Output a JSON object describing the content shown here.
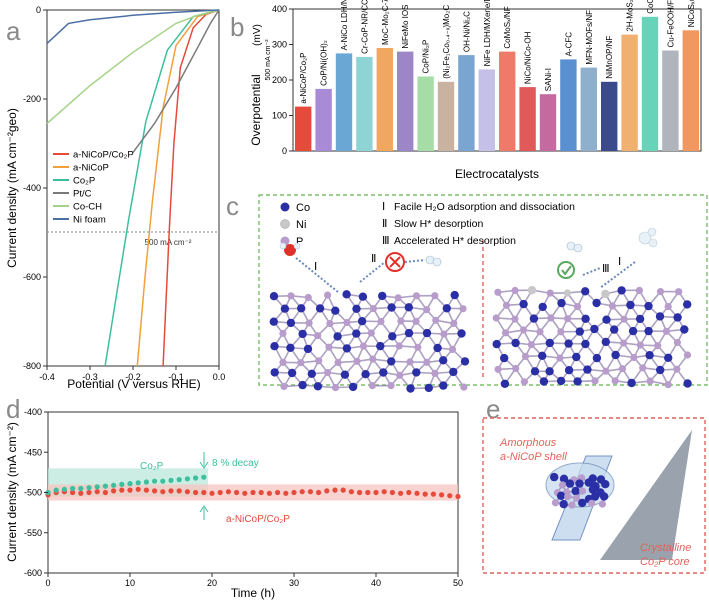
{
  "panel_labels": [
    "a",
    "b",
    "c",
    "d",
    "e"
  ],
  "colors": {
    "a_nicop_co2p": "#e64a3b",
    "a_nicop": "#f2a03d",
    "co2p": "#3dbf9e",
    "ptc": "#7a7a7a",
    "co_ch": "#a6d38a",
    "ni_foam": "#4a6fa5",
    "panel_c_border": "#7ac06a",
    "panel_e_border": "#e2625a"
  },
  "panel_c": {
    "legend": [
      "Co",
      "Ni",
      "P"
    ],
    "steps": [
      "Facile H₂O adsorption and dissociation",
      "Slow H* desorption",
      "Accelerated H* desorption"
    ],
    "step_numerals": [
      "Ⅰ",
      "Ⅱ",
      "Ⅲ"
    ]
  },
  "panel_e": {
    "shell_label": [
      "Amorphous",
      "a-NiCoP shell"
    ],
    "core_label": [
      "Crystalline",
      "Co₂P core"
    ]
  },
  "chart_data": [
    {
      "panel": "a",
      "type": "line",
      "xlabel": "Potential (V versus RHE)",
      "ylabel": "Current density (mA cm⁻²geo)",
      "xlim": [
        -0.4,
        0.0
      ],
      "ylim": [
        -800,
        0
      ],
      "xticks": [
        "-0.4",
        "-0.3",
        "-0.2",
        "-0.1",
        "0.0"
      ],
      "yticks": [
        "0",
        "-200",
        "-400",
        "-600",
        "-800"
      ],
      "reference_line": {
        "y": -500,
        "label": "500 mA cm⁻²"
      },
      "series": [
        {
          "name": "a-NiCoP/Co₂P",
          "key": "a_nicop_co2p",
          "points": [
            [
              0,
              0
            ],
            [
              -0.03,
              -10
            ],
            [
              -0.06,
              -40
            ],
            [
              -0.09,
              -130
            ],
            [
              -0.105,
              -300
            ],
            [
              -0.115,
              -480
            ],
            [
              -0.123,
              -650
            ],
            [
              -0.13,
              -800
            ]
          ]
        },
        {
          "name": "a-NiCoP",
          "key": "a_nicop",
          "points": [
            [
              0,
              0
            ],
            [
              -0.05,
              -15
            ],
            [
              -0.1,
              -80
            ],
            [
              -0.13,
              -220
            ],
            [
              -0.155,
              -430
            ],
            [
              -0.172,
              -600
            ],
            [
              -0.19,
              -800
            ]
          ]
        },
        {
          "name": "Co₂P",
          "key": "co2p",
          "points": [
            [
              0,
              0
            ],
            [
              -0.06,
              -15
            ],
            [
              -0.12,
              -90
            ],
            [
              -0.17,
              -250
            ],
            [
              -0.21,
              -470
            ],
            [
              -0.24,
              -650
            ],
            [
              -0.265,
              -800
            ]
          ]
        },
        {
          "name": "Pt/C",
          "key": "ptc",
          "points": [
            [
              0,
              0
            ],
            [
              -0.02,
              -30
            ],
            [
              -0.05,
              -85
            ],
            [
              -0.1,
              -175
            ],
            [
              -0.15,
              -255
            ],
            [
              -0.2,
              -320
            ]
          ]
        },
        {
          "name": "Co-CH",
          "key": "co_ch",
          "points": [
            [
              0,
              0
            ],
            [
              -0.05,
              -12
            ],
            [
              -0.1,
              -30
            ],
            [
              -0.2,
              -95
            ],
            [
              -0.3,
              -170
            ],
            [
              -0.4,
              -255
            ]
          ]
        },
        {
          "name": "Ni foam",
          "key": "ni_foam",
          "points": [
            [
              0,
              0
            ],
            [
              -0.1,
              -5
            ],
            [
              -0.2,
              -12
            ],
            [
              -0.3,
              -22
            ],
            [
              -0.35,
              -30
            ],
            [
              -0.4,
              -75
            ]
          ]
        }
      ]
    },
    {
      "panel": "b",
      "type": "bar",
      "xlabel": "Electrocatalysts",
      "ylabel": "Overpotential",
      "ylabel_unit": "(mV)",
      "ylabel_sub": "500 mA cm⁻²",
      "ylim": [
        0,
        400
      ],
      "yticks": [
        "0",
        "100",
        "200",
        "300",
        "400"
      ],
      "categories": [
        "a-NiCoP/Co₂P",
        "CoP/Ni(OH)₂",
        "A-NiCo LDH/NF",
        "Cr-CoP-NR/CC",
        "MoC-Mo₂C-790",
        "NiFeMo IOS",
        "CoP/Ni₂P",
        "(Ni₂Fe₁Co₀.₄₋ₓ)Mo₂C",
        "OH-Ni/Ni₃C",
        "NiFe LDH/MXene/NF",
        "CoMoSₓ/NF",
        "NiCo/NiCo-OH",
        "SANi-I",
        "A-CFC",
        "MFN-MOFs/NF",
        "NiMnOP/NF",
        "2H-MoS₂",
        "CoOₓ-CoSe",
        "Cu-FeOOH/Fe₃O₄",
        "NiCoSₓ@CoCH NAs/NF"
      ],
      "values": [
        125,
        175,
        275,
        265,
        290,
        280,
        210,
        195,
        270,
        230,
        280,
        180,
        160,
        258,
        235,
        195,
        328,
        378,
        283,
        340
      ],
      "bar_colors": [
        "#e64a3b",
        "#a88ad6",
        "#6aa7d4",
        "#8fd4d4",
        "#f0a860",
        "#9c86c8",
        "#a6dca6",
        "#c9b3a0",
        "#7aa5d0",
        "#c4c0e8",
        "#f07a6a",
        "#e05a5a",
        "#c46aa0",
        "#5a8fd0",
        "#8fb0cc",
        "#3a4a8a",
        "#f0b070",
        "#66d4b8",
        "#b0b4bc",
        "#f09860"
      ]
    },
    {
      "panel": "d",
      "type": "scatter",
      "xlabel": "Time (h)",
      "ylabel": "Current density (mA cm⁻²)",
      "xlim": [
        0,
        50
      ],
      "ylim": [
        -600,
        -400
      ],
      "xticks": [
        "0",
        "10",
        "20",
        "30",
        "40",
        "50"
      ],
      "yticks": [
        "-400",
        "-450",
        "-500",
        "-550",
        "-600"
      ],
      "annotation": "8 % decay",
      "series": [
        {
          "name": "Co₂P",
          "key": "co2p",
          "x": [
            0,
            1,
            2,
            3,
            4,
            5,
            6,
            7,
            8,
            9,
            10,
            11,
            12,
            13,
            14,
            15,
            16,
            17,
            18,
            19
          ],
          "values": [
            -500,
            -497,
            -496,
            -495,
            -495,
            -494,
            -493,
            -492,
            -491,
            -490,
            -489,
            -488,
            -487,
            -486,
            -486,
            -485,
            -484,
            -483,
            -482,
            -481
          ]
        },
        {
          "name": "a-NiCoP/Co₂P",
          "key": "a_nicop_co2p",
          "x": [
            0,
            1,
            2,
            3,
            4,
            5,
            6,
            7,
            8,
            9,
            10,
            11,
            12,
            13,
            14,
            15,
            16,
            17,
            18,
            19,
            20,
            21,
            22,
            23,
            24,
            25,
            26,
            27,
            28,
            29,
            30,
            31,
            32,
            33,
            34,
            35,
            36,
            37,
            38,
            39,
            40,
            41,
            42,
            43,
            44,
            45,
            46,
            47,
            48,
            49,
            50
          ],
          "values": [
            -503,
            -500,
            -499,
            -500,
            -501,
            -500,
            -499,
            -500,
            -498,
            -497,
            -497,
            -496,
            -497,
            -498,
            -499,
            -498,
            -498,
            -499,
            -500,
            -500,
            -501,
            -500,
            -499,
            -500,
            -501,
            -500,
            -500,
            -501,
            -500,
            -501,
            -500,
            -499,
            -499,
            -500,
            -498,
            -497,
            -497,
            -499,
            -500,
            -500,
            -500,
            -499,
            -500,
            -501,
            -500,
            -501,
            -502,
            -502,
            -503,
            -504,
            -505
          ]
        }
      ]
    }
  ]
}
